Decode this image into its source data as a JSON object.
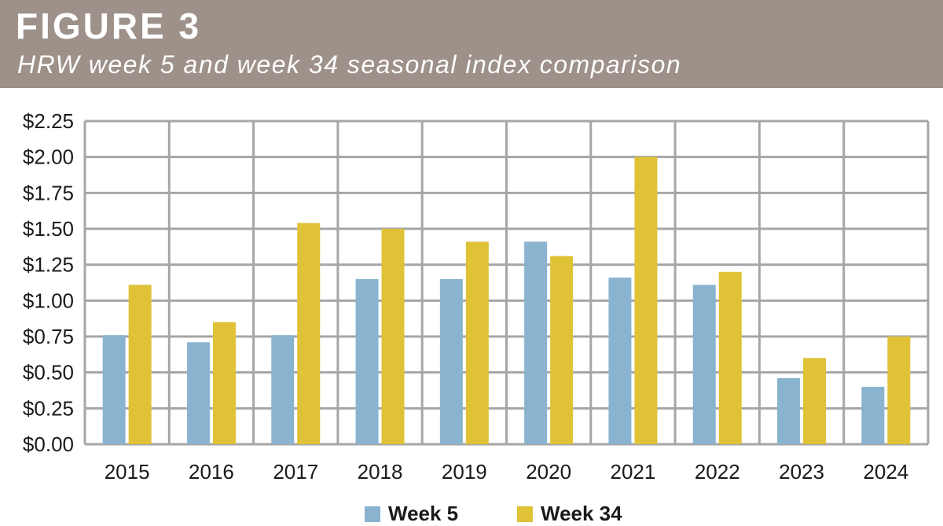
{
  "header": {
    "figure_label": "FIGURE 3",
    "subtitle": "HRW week 5 and week 34 seasonal index comparison"
  },
  "colors": {
    "header_bg": "#9d918a",
    "week5": "#8ab3d0",
    "week34": "#dfc236",
    "grid": "#a6a6a6"
  },
  "chart_data": {
    "type": "bar",
    "title": "HRW week 5 and week 34 seasonal index comparison",
    "categories": [
      "2015",
      "2016",
      "2017",
      "2018",
      "2019",
      "2020",
      "2021",
      "2022",
      "2023",
      "2024"
    ],
    "series": [
      {
        "name": "Week 5",
        "values": [
          0.76,
          0.71,
          0.76,
          1.15,
          1.15,
          1.41,
          1.16,
          1.11,
          0.46,
          0.4
        ]
      },
      {
        "name": "Week 34",
        "values": [
          1.11,
          0.85,
          1.54,
          1.5,
          1.41,
          1.31,
          2.0,
          1.2,
          0.6,
          0.75
        ]
      }
    ],
    "ylim": [
      0,
      2.25
    ],
    "yticks": [
      "$0.00",
      "$0.25",
      "$0.50",
      "$0.75",
      "$1.00",
      "$1.25",
      "$1.50",
      "$1.75",
      "$2.00",
      "$2.25"
    ],
    "ytick_values": [
      0,
      0.25,
      0.5,
      0.75,
      1.0,
      1.25,
      1.5,
      1.75,
      2.0,
      2.25
    ],
    "grid": true,
    "legend": "bottom-center"
  }
}
